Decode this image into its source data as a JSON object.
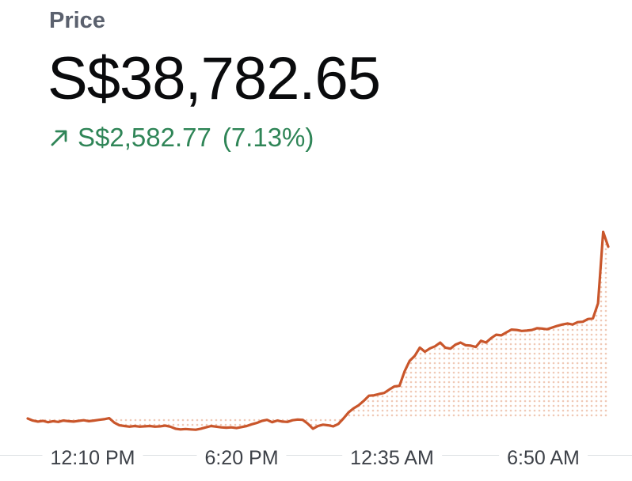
{
  "header": {
    "label": "Price",
    "price": "S$38,782.65",
    "change_amount": "S$2,582.77",
    "change_percent": "(7.13%)",
    "change_direction": "up",
    "arrow_icon": "arrow-up-right-icon"
  },
  "colors": {
    "line": "#c9562b",
    "positive": "#2f8557",
    "fill_dots": "#f0c9b6"
  },
  "chart_data": {
    "type": "line",
    "title": "",
    "xlabel": "",
    "ylabel": "",
    "tick_labels": [
      "12:10 PM",
      "6:20 PM",
      "12:35 AM",
      "6:50 AM"
    ],
    "grid": false,
    "ylim": [
      35900,
      39500
    ],
    "series": [
      {
        "values": [
          36260,
          36230,
          36215,
          36225,
          36205,
          36220,
          36210,
          36230,
          36220,
          36215,
          36225,
          36235,
          36220,
          36230,
          36240,
          36250,
          36265,
          36200,
          36160,
          36150,
          36140,
          36150,
          36140,
          36145,
          36150,
          36140,
          36145,
          36155,
          36140,
          36110,
          36100,
          36105,
          36100,
          36095,
          36110,
          36130,
          36150,
          36140,
          36130,
          36125,
          36130,
          36120,
          36135,
          36150,
          36175,
          36195,
          36225,
          36240,
          36205,
          36230,
          36215,
          36210,
          36235,
          36245,
          36240,
          36185,
          36110,
          36150,
          36170,
          36160,
          36145,
          36180,
          36260,
          36350,
          36410,
          36455,
          36520,
          36595,
          36600,
          36620,
          36635,
          36685,
          36730,
          36740,
          36950,
          37105,
          37180,
          37300,
          37240,
          37290,
          37320,
          37375,
          37300,
          37285,
          37345,
          37375,
          37335,
          37330,
          37310,
          37400,
          37375,
          37440,
          37490,
          37480,
          37525,
          37565,
          37560,
          37545,
          37550,
          37560,
          37585,
          37580,
          37570,
          37595,
          37620,
          37640,
          37655,
          37640,
          37675,
          37680,
          37720,
          37730,
          37950,
          39000,
          38782.65
        ]
      }
    ]
  }
}
